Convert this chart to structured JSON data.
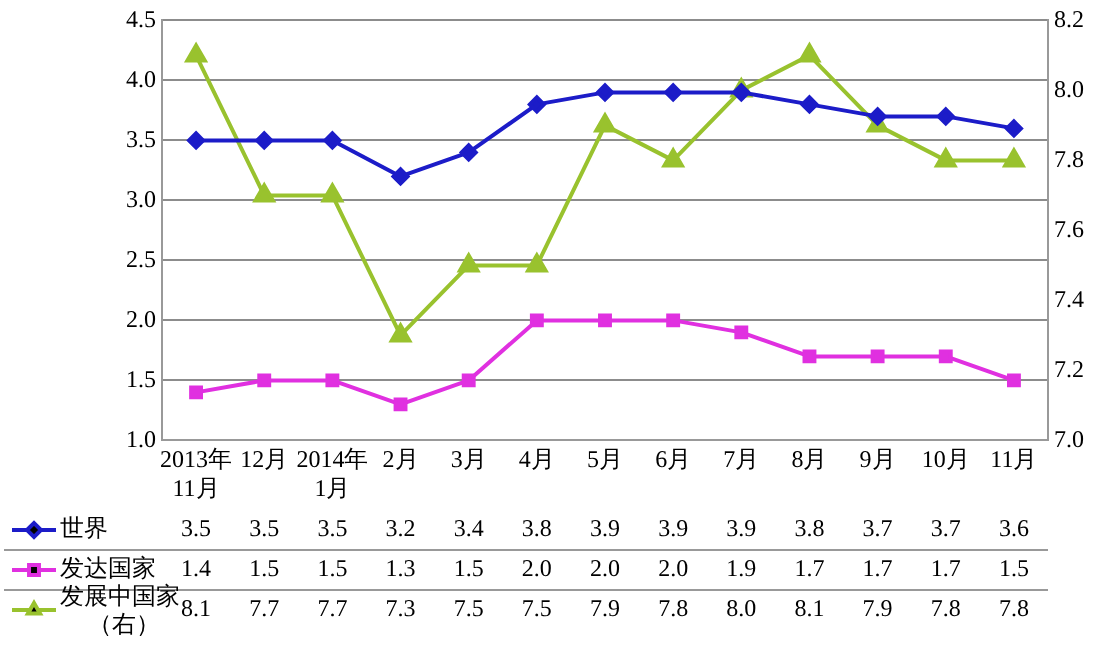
{
  "chart_data": {
    "type": "line",
    "categories": [
      "2013年\n11月",
      "12月",
      "2014年\n1月",
      "2月",
      "3月",
      "4月",
      "5月",
      "6月",
      "7月",
      "8月",
      "9月",
      "10月",
      "11月"
    ],
    "series": [
      {
        "name": "世界",
        "color": "#1c1cc8",
        "marker": "diamond",
        "values": [
          3.5,
          3.5,
          3.5,
          3.2,
          3.4,
          3.8,
          3.9,
          3.9,
          3.9,
          3.8,
          3.7,
          3.7,
          3.6
        ],
        "value_labels": [
          "3.5",
          "3.5",
          "3.5",
          "3.2",
          "3.4",
          "3.8",
          "3.9",
          "3.9",
          "3.9",
          "3.8",
          "3.7",
          "3.7",
          "3.6"
        ]
      },
      {
        "name": "发达国家",
        "color": "#e030e0",
        "marker": "square",
        "values": [
          1.4,
          1.5,
          1.5,
          1.3,
          1.5,
          2.0,
          2.0,
          2.0,
          1.9,
          1.7,
          1.7,
          1.7,
          1.5
        ],
        "value_labels": [
          "1.4",
          "1.5",
          "1.5",
          "1.3",
          "1.5",
          "2.0",
          "2.0",
          "2.0",
          "1.9",
          "1.7",
          "1.7",
          "1.7",
          "1.5"
        ]
      },
      {
        "name": "发展中国家（右）",
        "color": "#99c22e",
        "marker": "triangle",
        "axis": "y2",
        "values": [
          8.1,
          7.7,
          7.7,
          7.3,
          7.5,
          7.5,
          7.9,
          7.8,
          8.0,
          8.1,
          7.9,
          7.8,
          7.8
        ],
        "value_labels": [
          "8.1",
          "7.7",
          "7.7",
          "7.3",
          "7.5",
          "7.5",
          "7.9",
          "7.8",
          "8.0",
          "8.1",
          "7.9",
          "7.8",
          "7.8"
        ]
      }
    ],
    "ylim": [
      1.0,
      4.5
    ],
    "yticks": [
      {
        "value": 1.0,
        "label": "1.0"
      },
      {
        "value": 1.5,
        "label": "1.5"
      },
      {
        "value": 2.0,
        "label": "2.0"
      },
      {
        "value": 2.5,
        "label": "2.5"
      },
      {
        "value": 3.0,
        "label": "3.0"
      },
      {
        "value": 3.5,
        "label": "3.5"
      },
      {
        "value": 4.0,
        "label": "4.0"
      },
      {
        "value": 4.5,
        "label": "4.5"
      }
    ],
    "y2lim": [
      7.0,
      8.2
    ],
    "y2ticks": [
      {
        "value": 7.0,
        "label": "7.0"
      },
      {
        "value": 7.2,
        "label": "7.2"
      },
      {
        "value": 7.4,
        "label": "7.4"
      },
      {
        "value": 7.6,
        "label": "7.6"
      },
      {
        "value": 7.8,
        "label": "7.8"
      },
      {
        "value": 8.0,
        "label": "8.0"
      },
      {
        "value": 8.2,
        "label": "8.2"
      }
    ],
    "grid": "y",
    "legend": "bottom left",
    "line_style": "solid"
  }
}
